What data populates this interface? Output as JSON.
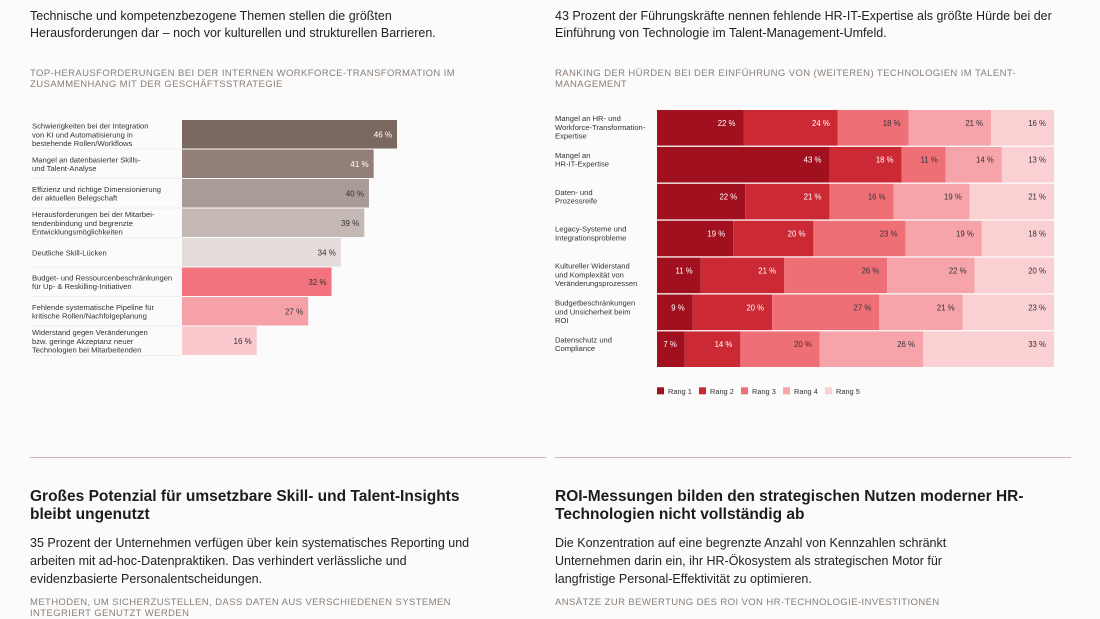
{
  "left": {
    "intro": "Technische und kompetenzbezogene Themen stellen die größten Herausforderungen dar – noch vor kulturellen und strukturellen Barrieren.",
    "chart_title": "Top-Herausforderungen bei der internen Workforce-Transformation im Zusammenhang mit der Geschäftsstrategie",
    "section_title": "Großes Potenzial für umsetzbare Skill- und Talent-Insights bleibt ungenutzt",
    "section_body": "35 Prozent der Unternehmen verfügen über kein systematisches Reporting und arbeiten mit ad-hoc-Datenpraktiken. Das verhindert verlässliche und evidenzbasierte Personalentscheidungen.",
    "section_subhead": "Methoden, um sicherzustellen, dass Daten aus verschiedenen Systemen integriert genutzt werden"
  },
  "right": {
    "intro": "43 Prozent der Führungskräfte nennen fehlende HR-IT-Expertise als größte Hürde bei der Einführung von Technologie im Talent-Management-Umfeld.",
    "chart_title": "Ranking der Hürden bei der Einführung von (weiteren) Technologien im Talent-Management",
    "section_title": "ROI-Messungen bilden den strategischen Nutzen moderner HR-Technologien nicht vollständig ab",
    "section_body": "Die Konzentration auf eine begrenzte Anzahl von Kennzahlen schränkt Unternehmen darin ein, ihr HR-Ökosystem als strategischen Motor für langfristige Personal-Effektivität zu optimieren.",
    "section_subhead": "Ansätze zur Bewertung des ROI von HR-Technologie-Investitionen"
  },
  "chart_data": [
    {
      "type": "bar",
      "orientation": "horizontal",
      "unit": "%",
      "categories": [
        [
          "Schwierigkeiten bei der Integration",
          "von KI und Automatisierung in",
          "bestehende Rollen/Workflows"
        ],
        [
          "Mangel an datenbasierter Skills-",
          "und Talent-Analyse"
        ],
        [
          "Effizienz und richtige Dimensionierung",
          "der aktuellen Belegschaft"
        ],
        [
          "Herausforderungen bei der Mitarbei-",
          "tendenbindung und begrenzte",
          "Entwicklungsmöglichkeiten"
        ],
        [
          "Deutliche Skill-Lücken"
        ],
        [
          "Budget- und Ressourcenbeschränkungen",
          "für Up- & Reskilling-Initiativen"
        ],
        [
          "Fehlende systematische Pipeline für",
          "kritische Rollen/Nachfolgeplanung"
        ],
        [
          "Widerstand gegen Veränderungen",
          "bzw. geringe Akzeptanz neuer",
          "Technologien bei Mitarbeitenden"
        ]
      ],
      "values": [
        46,
        41,
        40,
        39,
        34,
        32,
        27,
        16
      ],
      "value_labels": [
        "46 %",
        "41 %",
        "40 %",
        "39 %",
        "34 %",
        "32 %",
        "27 %",
        "16 %"
      ],
      "colors": [
        "#7a6860",
        "#928078",
        "#a99b95",
        "#c3b8b4",
        "#e4dcda",
        "#f2737e",
        "#f6a1a8",
        "#f9c9cd"
      ],
      "label_colors": [
        "#ffffff",
        "#ffffff",
        "#333333",
        "#333333",
        "#333333",
        "#333333",
        "#333333",
        "#333333"
      ],
      "xlim": [
        0,
        46
      ]
    },
    {
      "type": "bar",
      "orientation": "horizontal",
      "stacked": true,
      "unit": "%",
      "categories": [
        [
          "Mangel an HR- und",
          "Workforce-Transformation-",
          "Expertise"
        ],
        [
          "Mangel an",
          "HR-IT-Expertise"
        ],
        [
          "Daten- und",
          "Prozessreife"
        ],
        [
          "Legacy-Systeme und",
          "Integrationsprobleme"
        ],
        [
          "Kultureller Widerstand",
          "und Komplexität von",
          "Veränderungsprozessen"
        ],
        [
          "Budgetbeschränkungen",
          "und Unsicherheit beim",
          "ROI"
        ],
        [
          "Datenschutz und",
          "Compliance"
        ]
      ],
      "series": [
        {
          "name": "Rang 1",
          "color": "#a1101f",
          "label_color": "#ffffff",
          "values": [
            22,
            43,
            22,
            19,
            11,
            9,
            7
          ]
        },
        {
          "name": "Rang 2",
          "color": "#cb2a35",
          "label_color": "#ffffff",
          "values": [
            24,
            18,
            21,
            20,
            21,
            20,
            14
          ]
        },
        {
          "name": "Rang 3",
          "color": "#ef6f77",
          "label_color": "#333333",
          "values": [
            18,
            11,
            16,
            23,
            26,
            27,
            20
          ]
        },
        {
          "name": "Rang 4",
          "color": "#f6a3a9",
          "label_color": "#333333",
          "values": [
            21,
            14,
            19,
            19,
            22,
            21,
            26
          ]
        },
        {
          "name": "Rang 5",
          "color": "#fad0d3",
          "label_color": "#333333",
          "values": [
            16,
            13,
            21,
            18,
            20,
            23,
            33
          ]
        }
      ],
      "legend": "bottom-left"
    }
  ]
}
